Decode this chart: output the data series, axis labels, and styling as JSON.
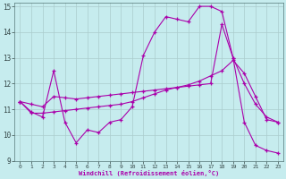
{
  "xlabel": "Windchill (Refroidissement éolien,°C)",
  "bg_color": "#c6ecee",
  "line_color": "#aa00aa",
  "grid_color": "#aacccc",
  "xlim": [
    0,
    23
  ],
  "ylim": [
    9,
    15
  ],
  "yticks": [
    9,
    10,
    11,
    12,
    13,
    14,
    15
  ],
  "xticks": [
    0,
    1,
    2,
    3,
    4,
    5,
    6,
    7,
    8,
    9,
    10,
    11,
    12,
    13,
    14,
    15,
    16,
    17,
    18,
    19,
    20,
    21,
    22,
    23
  ],
  "curve1_x": [
    0,
    1,
    2,
    3,
    4,
    5,
    6,
    7,
    8,
    9,
    10,
    11,
    12,
    13,
    14,
    15,
    16,
    17,
    18,
    19,
    20,
    21,
    22,
    23
  ],
  "curve1_y": [
    11.3,
    10.9,
    10.7,
    12.5,
    10.5,
    9.7,
    10.2,
    10.1,
    10.5,
    10.6,
    11.1,
    13.1,
    14.0,
    14.6,
    14.5,
    14.4,
    15.0,
    15.0,
    14.8,
    13.0,
    10.5,
    9.6,
    9.4,
    9.3
  ],
  "curve2_x": [
    0,
    1,
    2,
    3,
    4,
    5,
    6,
    7,
    8,
    9,
    10,
    11,
    12,
    13,
    14,
    15,
    16,
    17,
    18,
    19,
    20,
    21,
    22,
    23
  ],
  "curve2_y": [
    11.3,
    10.85,
    10.85,
    10.9,
    10.95,
    11.0,
    11.05,
    11.1,
    11.15,
    11.2,
    11.3,
    11.45,
    11.6,
    11.75,
    11.85,
    11.95,
    12.1,
    12.3,
    12.5,
    12.9,
    12.4,
    11.5,
    10.6,
    10.5
  ],
  "curve3_x": [
    0,
    1,
    2,
    3,
    4,
    5,
    6,
    7,
    8,
    9,
    10,
    11,
    12,
    13,
    14,
    15,
    16,
    17,
    18,
    19,
    20,
    21,
    22,
    23
  ],
  "curve3_y": [
    11.3,
    11.2,
    11.1,
    11.5,
    11.45,
    11.4,
    11.45,
    11.5,
    11.55,
    11.6,
    11.65,
    11.7,
    11.75,
    11.8,
    11.85,
    11.9,
    11.95,
    12.0,
    14.3,
    13.0,
    12.0,
    11.2,
    10.7,
    10.5
  ]
}
